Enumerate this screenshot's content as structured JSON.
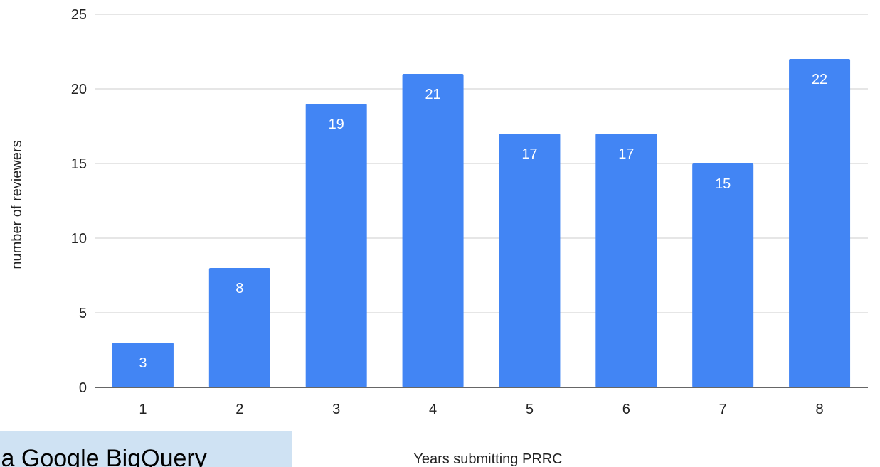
{
  "chart_data": {
    "type": "bar",
    "categories": [
      "1",
      "2",
      "3",
      "4",
      "5",
      "6",
      "7",
      "8"
    ],
    "values": [
      3,
      8,
      19,
      21,
      17,
      17,
      15,
      22
    ],
    "data_labels": [
      "3",
      "8",
      "19",
      "21",
      "17",
      "17",
      "15",
      "22"
    ],
    "title": "",
    "xlabel": "Years submitting PRRC",
    "ylabel": "number of reviewers",
    "ylim": [
      0,
      25
    ],
    "yticks": [
      "0",
      "5",
      "10",
      "15",
      "20",
      "25"
    ],
    "grid": true,
    "legend": "none",
    "bar_color": "#4285f4",
    "label_color": "#ffffff"
  },
  "source_note": {
    "text": "ia Google BigQuery",
    "background": "#cfe2f3"
  }
}
